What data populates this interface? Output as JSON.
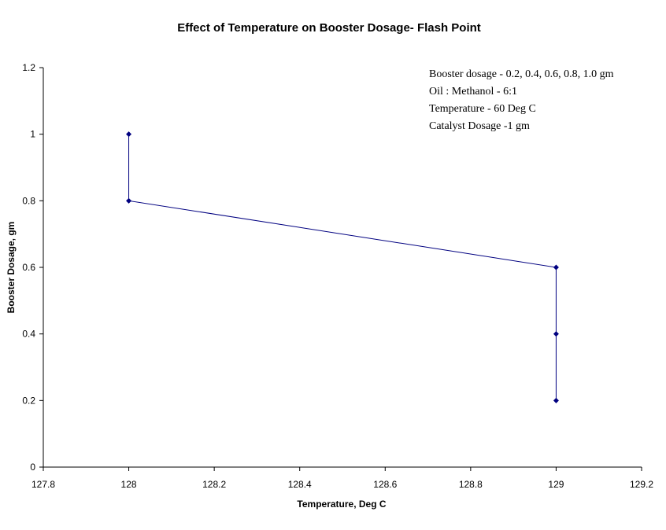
{
  "chart_data": {
    "type": "line",
    "title": "Effect of Temperature on Booster Dosage- Flash Point",
    "xlabel": "Temperature, Deg C",
    "ylabel": "Booster Dosage, gm",
    "xlim": [
      127.8,
      129.2
    ],
    "ylim": [
      0,
      1.2
    ],
    "x_ticks": [
      "127.8",
      "128",
      "128.2",
      "128.4",
      "128.6",
      "128.8",
      "129",
      "129.2"
    ],
    "y_ticks": [
      "0",
      "0.2",
      "0.4",
      "0.6",
      "0.8",
      "1",
      "1.2"
    ],
    "grid": false,
    "legend": "none",
    "series": [
      {
        "color": "#000080",
        "marker": "diamond",
        "points": [
          {
            "x": 128,
            "y": 1.0
          },
          {
            "x": 128,
            "y": 0.8
          },
          {
            "x": 129,
            "y": 0.6
          },
          {
            "x": 129,
            "y": 0.4
          },
          {
            "x": 129,
            "y": 0.2
          }
        ]
      }
    ],
    "annotations": [
      "Booster dosage - 0.2, 0.4, 0.6, 0.8, 1.0 gm",
      "Oil : Methanol - 6:1",
      "Temperature - 60 Deg C",
      "Catalyst Dosage -1 gm"
    ]
  }
}
